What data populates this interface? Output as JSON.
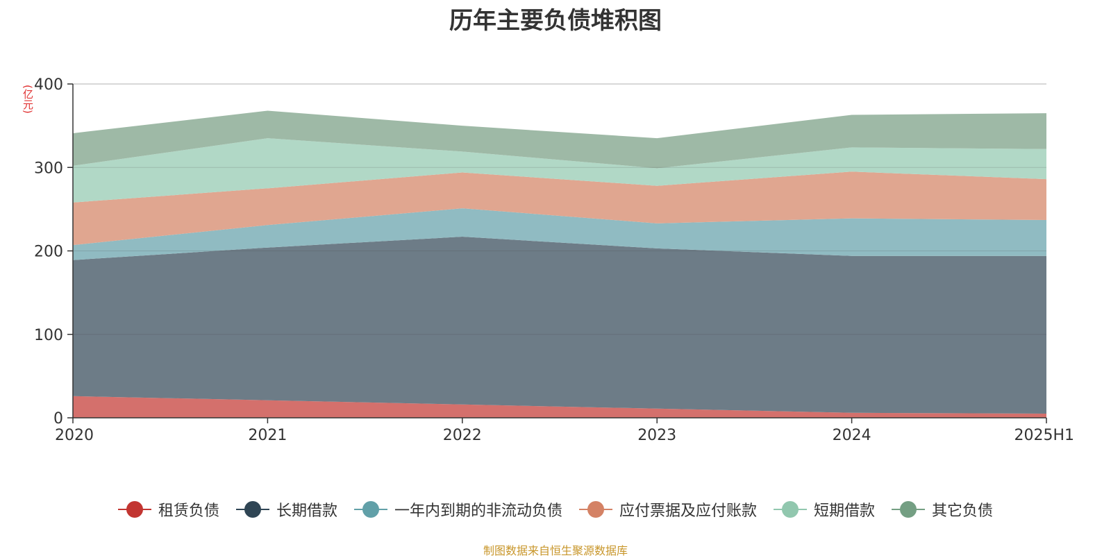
{
  "chart_data": {
    "type": "area",
    "title": "历年主要负债堆积图",
    "unit_label": "(亿元)",
    "categories": [
      "2020",
      "2021",
      "2022",
      "2023",
      "2024",
      "2025H1"
    ],
    "ylim": [
      0,
      400
    ],
    "yticks": [
      "0",
      "100",
      "200",
      "300",
      "400"
    ],
    "grid": true,
    "legend_position": "bottom",
    "stacked": true,
    "series": [
      {
        "name": "租赁负债",
        "values": [
          26,
          21,
          16,
          11,
          6,
          5
        ],
        "color": "#c23531",
        "area_color": "#d4706c"
      },
      {
        "name": "长期借款",
        "values": [
          163,
          183,
          201,
          192,
          188,
          189
        ],
        "color": "#2f4554",
        "area_color": "#6d7c87"
      },
      {
        "name": "一年内到期的非流动负债",
        "values": [
          18,
          27,
          34,
          30,
          45,
          43
        ],
        "color": "#61a0a8",
        "area_color": "#90bbc2"
      },
      {
        "name": "应付票据及应付账款",
        "values": [
          51,
          44,
          43,
          45,
          56,
          49
        ],
        "color": "#d48265",
        "area_color": "#e0a690"
      },
      {
        "name": "短期借款",
        "values": [
          44,
          60,
          25,
          21,
          29,
          36
        ],
        "color": "#91c7ae",
        "area_color": "#b1d8c6"
      },
      {
        "name": "其它负债",
        "values": [
          39,
          33,
          31,
          36,
          39,
          43
        ],
        "color": "#749f83",
        "area_color": "#9eb9a6"
      }
    ]
  },
  "footer": {
    "source": "制图数据来自恒生聚源数据库"
  }
}
